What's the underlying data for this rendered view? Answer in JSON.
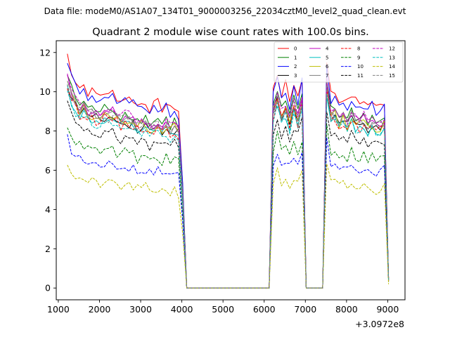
{
  "chart_data": {
    "type": "line",
    "suptitle": "Data file: modeM0/AS1A07_134T01_9000003256_22034cztM0_level2_quad_clean.evt",
    "title": "Quadrant 2 module wise count rates with 100.0s bins.",
    "xlabel": "",
    "ylabel": "",
    "x_offset_label": "+3.0972e8",
    "xlim": [
      950,
      9420
    ],
    "ylim": [
      -0.6,
      12.6
    ],
    "xticks": [
      1000,
      2000,
      3000,
      4000,
      5000,
      6000,
      7000,
      8000,
      9000
    ],
    "yticks": [
      0,
      2,
      4,
      6,
      8,
      10,
      12
    ],
    "legend_position": "upper-right",
    "legend_columns": 4,
    "base_profile": {
      "x": [
        1220,
        1320,
        1420,
        1520,
        1620,
        1720,
        1820,
        1920,
        2020,
        2120,
        2220,
        2320,
        2420,
        2520,
        2620,
        2720,
        2820,
        2920,
        3020,
        3120,
        3220,
        3320,
        3420,
        3520,
        3620,
        3720,
        3820,
        3920,
        4020,
        4120,
        4220,
        4320,
        4420,
        4520,
        4620,
        4720,
        4820,
        4920,
        5020,
        5120,
        5220,
        5320,
        5420,
        5520,
        5620,
        5720,
        5820,
        5920,
        6020,
        6120,
        6220,
        6320,
        6420,
        6520,
        6620,
        6720,
        6820,
        6920,
        7020,
        7120,
        7220,
        7320,
        7420,
        7520,
        7620,
        7720,
        7820,
        7920,
        8020,
        8120,
        8220,
        8320,
        8420,
        8520,
        8620,
        8720,
        8820,
        8920,
        9020
      ],
      "y": [
        1.0,
        0.93,
        0.89,
        0.86,
        0.87,
        0.84,
        0.84,
        0.83,
        0.83,
        0.84,
        0.82,
        0.84,
        0.82,
        0.8,
        0.82,
        0.81,
        0.81,
        0.78,
        0.79,
        0.8,
        0.77,
        0.78,
        0.79,
        0.77,
        0.79,
        0.76,
        0.78,
        0.76,
        0.44,
        0.0,
        0.0,
        0.0,
        0.0,
        0.0,
        0.0,
        0.0,
        0.0,
        0.0,
        0.0,
        0.0,
        0.0,
        0.0,
        0.0,
        0.0,
        0.0,
        0.0,
        0.0,
        0.0,
        0.0,
        0.0,
        0.85,
        0.92,
        0.83,
        0.87,
        0.8,
        0.88,
        0.82,
        0.9,
        0.0,
        0.0,
        0.0,
        0.0,
        0.0,
        0.98,
        0.83,
        0.84,
        0.8,
        0.82,
        0.79,
        0.83,
        0.8,
        0.79,
        0.81,
        0.78,
        0.8,
        0.77,
        0.78,
        0.8,
        0.04
      ]
    },
    "series": [
      {
        "name": "0",
        "color": "#ff0000",
        "dash": "solid",
        "level": 11.9
      },
      {
        "name": "1",
        "color": "#008000",
        "dash": "solid",
        "level": 10.9
      },
      {
        "name": "2",
        "color": "#0000ff",
        "dash": "solid",
        "level": 11.6
      },
      {
        "name": "3",
        "color": "#000000",
        "dash": "solid",
        "level": 10.4
      },
      {
        "name": "4",
        "color": "#bf00bf",
        "dash": "solid",
        "level": 10.7
      },
      {
        "name": "5",
        "color": "#00bfbf",
        "dash": "solid",
        "level": 10.2
      },
      {
        "name": "6",
        "color": "#bfbf00",
        "dash": "solid",
        "level": 10.5
      },
      {
        "name": "7",
        "color": "#808080",
        "dash": "solid",
        "level": 10.6
      },
      {
        "name": "8",
        "color": "#ff0000",
        "dash": "dashed",
        "level": 10.3
      },
      {
        "name": "9",
        "color": "#008000",
        "dash": "dashed",
        "level": 8.4
      },
      {
        "name": "10",
        "color": "#0000ff",
        "dash": "dashed",
        "level": 7.6
      },
      {
        "name": "11",
        "color": "#000000",
        "dash": "dashed",
        "level": 9.4
      },
      {
        "name": "12",
        "color": "#bf00bf",
        "dash": "dashed",
        "level": 10.8
      },
      {
        "name": "13",
        "color": "#00bfbf",
        "dash": "dashed",
        "level": 10.1
      },
      {
        "name": "14",
        "color": "#bfbf00",
        "dash": "dashed",
        "level": 6.4
      },
      {
        "name": "15",
        "color": "#808080",
        "dash": "dashed",
        "level": 10.6
      }
    ]
  }
}
